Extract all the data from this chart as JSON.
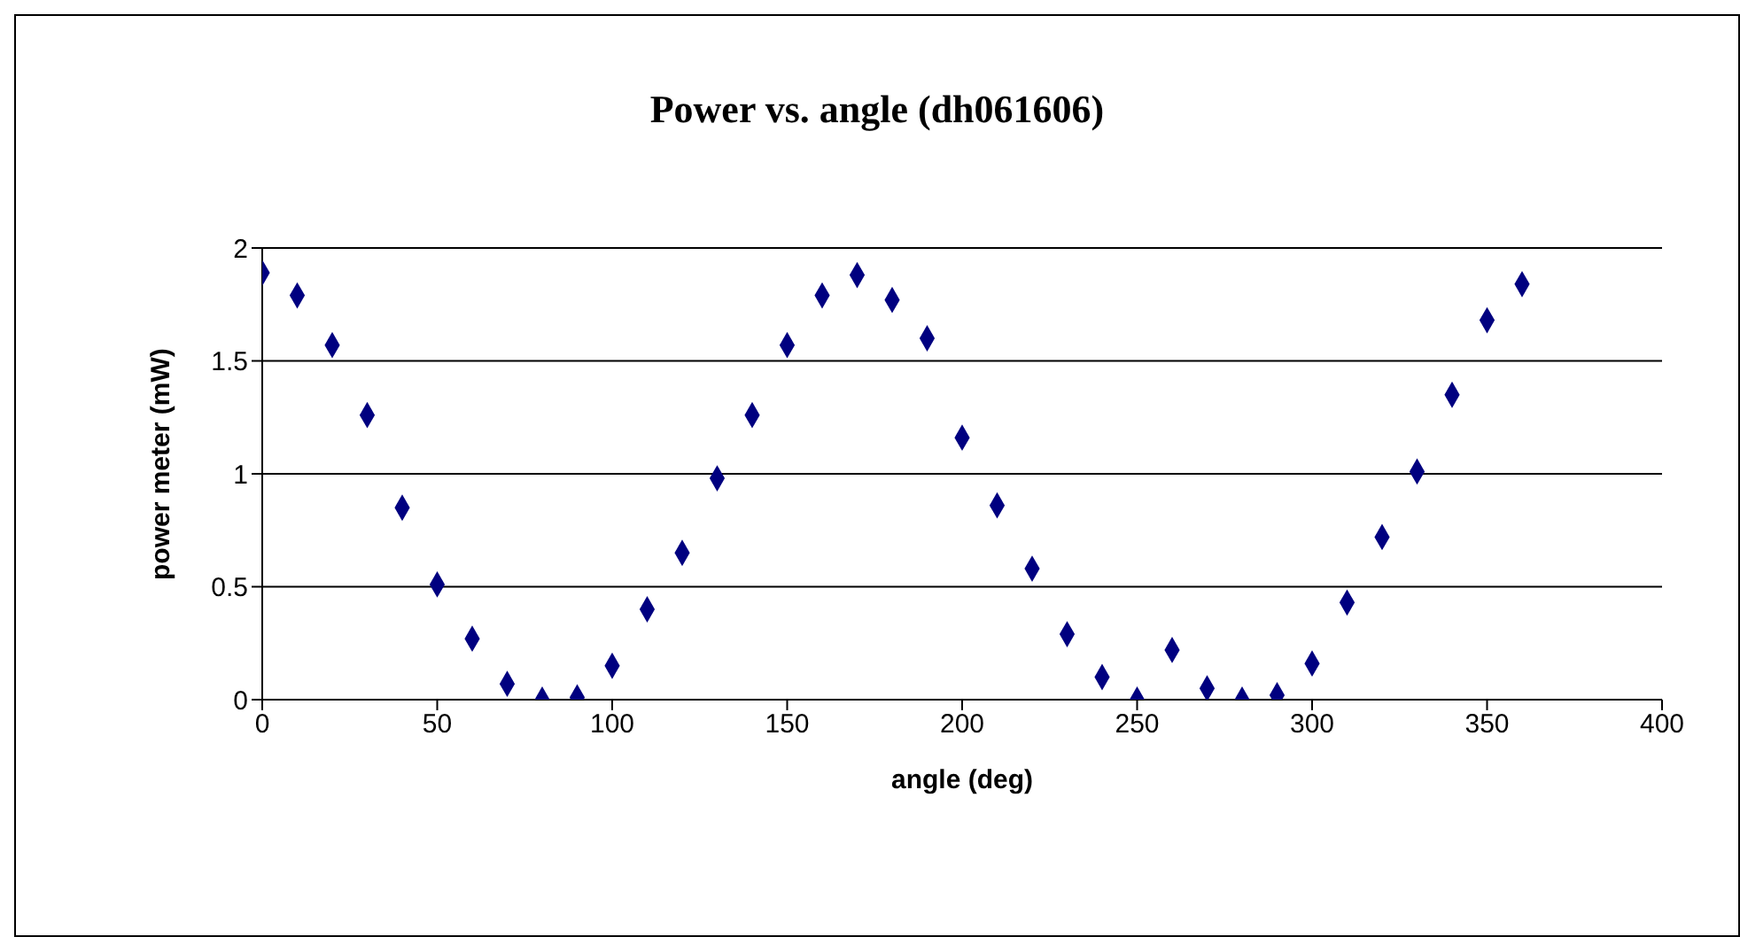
{
  "chart_data": {
    "type": "scatter",
    "title": "Power vs. angle (dh061606)",
    "xlabel": "angle (deg)",
    "ylabel": "power meter (mW)",
    "x": [
      0,
      10,
      20,
      30,
      40,
      50,
      60,
      70,
      80,
      90,
      100,
      110,
      120,
      130,
      140,
      150,
      160,
      170,
      180,
      190,
      200,
      210,
      220,
      230,
      240,
      250,
      260,
      270,
      280,
      290,
      300,
      310,
      320,
      330,
      340,
      350,
      360
    ],
    "series": [
      {
        "color": "#000080",
        "values": [
          1.89,
          1.79,
          1.57,
          1.26,
          0.85,
          0.51,
          0.27,
          0.07,
          0,
          0.01,
          0.15,
          0.4,
          0.65,
          0.98,
          1.26,
          1.57,
          1.79,
          1.88,
          1.77,
          1.6,
          1.16,
          0.86,
          0.58,
          0.29,
          0.1,
          0,
          0.22,
          0.05,
          0,
          0.02,
          0.16,
          0.43,
          0.72,
          1.01,
          1.35,
          1.68,
          1.84
        ]
      }
    ],
    "xlim": [
      0,
      400
    ],
    "xticks": [
      0,
      50,
      100,
      150,
      200,
      250,
      300,
      350,
      400
    ],
    "ylim": [
      0,
      2
    ],
    "yticks": [
      0,
      0.5,
      1,
      1.5,
      2
    ],
    "grid": "y",
    "marker": "diamond"
  }
}
